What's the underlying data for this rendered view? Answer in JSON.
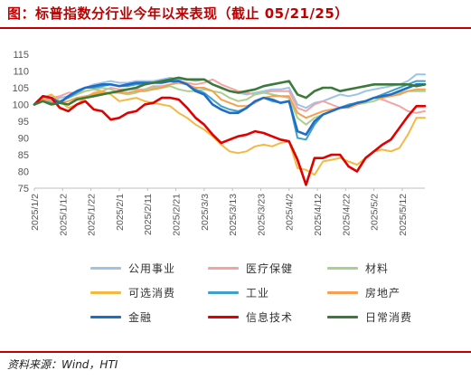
{
  "header": {
    "title": "图：标普指数分行业今年以来表现（截止 05/21/25）"
  },
  "footer": {
    "source": "资料来源：Wind，HTI"
  },
  "chart_data": {
    "type": "line",
    "ylim": [
      75,
      115
    ],
    "yticks": [
      75,
      80,
      85,
      90,
      95,
      100,
      105,
      110,
      115
    ],
    "x": [
      "2025/1/2",
      "2025/1/5",
      "2025/1/8",
      "2025/1/11",
      "2025/1/14",
      "2025/1/17",
      "2025/1/20",
      "2025/1/23",
      "2025/1/26",
      "2025/1/29",
      "2025/2/1",
      "2025/2/4",
      "2025/2/7",
      "2025/2/10",
      "2025/2/13",
      "2025/2/16",
      "2025/2/19",
      "2025/2/22",
      "2025/2/25",
      "2025/2/28",
      "2025/3/3",
      "2025/3/6",
      "2025/3/9",
      "2025/3/12",
      "2025/3/15",
      "2025/3/18",
      "2025/3/21",
      "2025/3/24",
      "2025/3/27",
      "2025/3/30",
      "2025/4/2",
      "2025/4/5",
      "2025/4/8",
      "2025/4/11",
      "2025/4/14",
      "2025/4/17",
      "2025/4/20",
      "2025/4/23",
      "2025/4/26",
      "2025/4/29",
      "2025/5/2",
      "2025/5/5",
      "2025/5/8",
      "2025/5/11",
      "2025/5/14",
      "2025/5/17",
      "2025/5/20"
    ],
    "xticks": [
      "2025/1/2",
      "2025/1/12",
      "2025/1/22",
      "2025/2/1",
      "2025/2/11",
      "2025/2/21",
      "2025/3/3",
      "2025/3/13",
      "2025/3/23",
      "2025/4/2",
      "2025/4/12",
      "2025/4/22",
      "2025/5/2",
      "2025/5/12"
    ],
    "legend_position": "bottom",
    "series": [
      {
        "name": "公用事业",
        "color": "#9dc3e6",
        "width": 2,
        "values": [
          100,
          101,
          101.5,
          102,
          102.5,
          103.5,
          105,
          106,
          106.5,
          107,
          106.5,
          106.5,
          107,
          107,
          107,
          107.5,
          108,
          107.5,
          107.5,
          107,
          107.5,
          106,
          105,
          104,
          103.5,
          103,
          103.5,
          104,
          104.5,
          104.5,
          105,
          100,
          99,
          100.5,
          101,
          102,
          103,
          102.5,
          103,
          104,
          104.5,
          105,
          105.5,
          106,
          107,
          109,
          109
        ]
      },
      {
        "name": "医疗保健",
        "color": "#f4a3a3",
        "width": 2,
        "values": [
          100,
          101.5,
          102,
          102.5,
          103.5,
          103.5,
          104,
          104.5,
          104,
          105,
          104.5,
          104.5,
          104.5,
          104.5,
          105.5,
          105.5,
          106,
          107,
          106.5,
          106,
          106.5,
          107.5,
          106,
          105,
          104,
          103.5,
          103,
          103.5,
          104,
          104,
          104,
          99,
          98,
          100,
          101,
          100,
          99,
          99.5,
          100,
          101,
          102,
          101.5,
          100.5,
          99.5,
          98,
          97.5,
          98
        ]
      },
      {
        "name": "材料",
        "color": "#a9d18e",
        "width": 2,
        "values": [
          100,
          101,
          100,
          101,
          102,
          103,
          104,
          104.5,
          105,
          104.5,
          103.5,
          103,
          103.5,
          104.5,
          105,
          105,
          105.5,
          104.5,
          104,
          104,
          104.5,
          104,
          103.5,
          102,
          101,
          101.5,
          103,
          103.5,
          103,
          102.5,
          102,
          96,
          94,
          96,
          97,
          98,
          99,
          99.5,
          100,
          100.5,
          101,
          102,
          103,
          103.5,
          104,
          104,
          104
        ]
      },
      {
        "name": "可选消费",
        "color": "#f4b942",
        "width": 2,
        "values": [
          100,
          102,
          103,
          101,
          99,
          100,
          102,
          103.5,
          104,
          103,
          101,
          101.5,
          102,
          101,
          100.5,
          100,
          99.5,
          97.5,
          96,
          94,
          92.5,
          90.5,
          88,
          86,
          85.5,
          86,
          87.5,
          88,
          87.5,
          88.5,
          89,
          81,
          80.5,
          79,
          83,
          83.5,
          84,
          83,
          82,
          84,
          86,
          86.5,
          86,
          87,
          91,
          96,
          96
        ]
      },
      {
        "name": "工业",
        "color": "#41a0c8",
        "width": 2,
        "values": [
          100,
          101,
          100.5,
          101,
          102,
          103.5,
          105,
          105,
          105.5,
          106,
          105.5,
          105.5,
          106,
          106,
          106.5,
          106.5,
          107,
          106.5,
          106,
          104.5,
          103.5,
          101.5,
          99.5,
          98.5,
          98,
          99,
          101,
          102,
          101,
          100.5,
          101,
          90,
          89.5,
          94,
          97,
          98,
          99,
          100,
          100.5,
          101,
          102,
          103,
          104,
          105,
          106,
          107,
          107
        ]
      },
      {
        "name": "房地产",
        "color": "#f4a050",
        "width": 2,
        "values": [
          100,
          101.5,
          101,
          100.5,
          101,
          102,
          102.5,
          103,
          103.5,
          103.5,
          103.5,
          103.5,
          104,
          104,
          104.5,
          105,
          106,
          106.5,
          106,
          105,
          105,
          104,
          101.5,
          100.5,
          99.5,
          99.5,
          100.5,
          102,
          102.5,
          102.5,
          102.5,
          97.5,
          96,
          97,
          98,
          98.5,
          99,
          99,
          100,
          101,
          102,
          102,
          102.5,
          103,
          104,
          104.5,
          104.5
        ]
      },
      {
        "name": "金融",
        "color": "#1e6ec8",
        "width": 2.6,
        "values": [
          100,
          102.5,
          102,
          100.5,
          102.5,
          104,
          105,
          105.5,
          106,
          106,
          105.5,
          106,
          106.5,
          106.5,
          106.5,
          106.5,
          107,
          107,
          106,
          104,
          103,
          100,
          98.5,
          97.5,
          97.5,
          99,
          101,
          102,
          101.5,
          100.5,
          101,
          92,
          91,
          95,
          97,
          98,
          99,
          99.5,
          100.5,
          101,
          102,
          102.5,
          103,
          104,
          105,
          106,
          106
        ]
      },
      {
        "name": "信息技术",
        "color": "#e00000",
        "width": 2.6,
        "values": [
          100,
          102.5,
          102,
          99,
          98,
          100,
          101,
          98.5,
          98,
          95.5,
          96,
          97.5,
          98,
          100,
          100.5,
          102,
          102,
          101.5,
          99,
          96,
          94,
          91,
          88.5,
          89.5,
          90.5,
          91,
          92,
          91.5,
          90.5,
          89.5,
          89,
          83.5,
          76,
          84,
          84,
          85,
          85,
          81.5,
          80,
          84,
          86,
          88,
          89.5,
          93,
          96.5,
          99.5,
          99.5
        ]
      },
      {
        "name": "日常消费",
        "color": "#3b7a3b",
        "width": 2.6,
        "values": [
          100,
          101,
          100,
          100.5,
          100,
          101.5,
          102,
          102.5,
          103,
          103.5,
          104,
          104.5,
          105,
          106,
          106.5,
          107,
          107.5,
          108,
          107.5,
          107.5,
          107.5,
          106,
          105,
          104,
          103.5,
          104,
          104.5,
          105.5,
          106,
          106.5,
          107,
          103,
          102,
          104,
          105,
          105,
          104,
          104.5,
          105,
          105.5,
          106,
          106,
          106,
          106,
          106,
          105.5,
          106
        ]
      }
    ]
  }
}
